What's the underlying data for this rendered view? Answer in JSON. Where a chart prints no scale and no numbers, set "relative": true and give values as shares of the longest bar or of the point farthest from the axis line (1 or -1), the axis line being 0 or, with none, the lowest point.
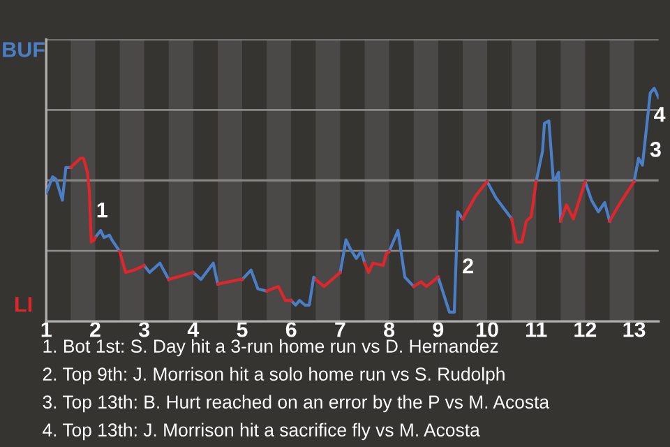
{
  "chart_data": {
    "type": "line",
    "relative": true,
    "grid": "y",
    "legend": false,
    "marker": "none",
    "line_style": "solid",
    "xlim": [
      1,
      13.5
    ],
    "xticks": [
      1,
      2,
      3,
      4,
      5,
      6,
      7,
      8,
      9,
      10,
      11,
      12,
      13
    ],
    "bands": [
      {
        "axis": "x",
        "from": 1.5,
        "to": 2,
        "color": "#4b4947"
      },
      {
        "axis": "x",
        "from": 2.5,
        "to": 3,
        "color": "#4b4947"
      },
      {
        "axis": "x",
        "from": 3.5,
        "to": 4,
        "color": "#4b4947"
      },
      {
        "axis": "x",
        "from": 4.5,
        "to": 5,
        "color": "#4b4947"
      },
      {
        "axis": "x",
        "from": 5.5,
        "to": 6,
        "color": "#4b4947"
      },
      {
        "axis": "x",
        "from": 6.5,
        "to": 7,
        "color": "#4b4947"
      },
      {
        "axis": "x",
        "from": 7.5,
        "to": 8,
        "color": "#4b4947"
      },
      {
        "axis": "x",
        "from": 8.5,
        "to": 9,
        "color": "#4b4947"
      },
      {
        "axis": "x",
        "from": 9.5,
        "to": 10,
        "color": "#4b4947"
      },
      {
        "axis": "x",
        "from": 10.5,
        "to": 11,
        "color": "#4b4947"
      },
      {
        "axis": "x",
        "from": 11.5,
        "to": 12,
        "color": "#4b4947"
      },
      {
        "axis": "x",
        "from": 12.5,
        "to": 13,
        "color": "#4b4947"
      }
    ],
    "series": [
      {
        "name": "BUF",
        "color": "#4a7fc8",
        "x": [
          1,
          1.13,
          1.2,
          1.33,
          1.4,
          1.5,
          null,
          2,
          2.11,
          2.18,
          2.29,
          2.34,
          2.5,
          null,
          3,
          3.11,
          3.32,
          3.5,
          null,
          4,
          4.16,
          4.41,
          4.5,
          null,
          5,
          5.18,
          5.32,
          5.5,
          null,
          6,
          6.09,
          6.17,
          6.28,
          6.37,
          6.46,
          6.5,
          null,
          7,
          7.12,
          7.21,
          7.33,
          7.43,
          7.5,
          null,
          8,
          8.18,
          8.32,
          8.5,
          null,
          9,
          9.23,
          9.33,
          9.4,
          9.5,
          null,
          10,
          10.18,
          10.5,
          null,
          11,
          11.13,
          11.17,
          11.26,
          11.35,
          11.39,
          11.46,
          11.5,
          null,
          12,
          12.13,
          12.27,
          12.4,
          12.5,
          null,
          13,
          13.09,
          13.17,
          13.33,
          13.41,
          13.5
        ],
        "values": [
          0.55,
          0.62,
          0.61,
          0.52,
          0.66,
          0.66,
          null,
          0.36,
          0.39,
          0.36,
          0.37,
          0.35,
          0.3,
          null,
          0.24,
          0.21,
          0.25,
          0.18,
          null,
          0.21,
          0.18,
          0.25,
          0.16,
          null,
          0.18,
          0.22,
          0.14,
          0.13,
          null,
          0.09,
          0.07,
          0.09,
          0.07,
          0.07,
          0.19,
          0.18,
          null,
          0.21,
          0.35,
          0.31,
          0.27,
          0.3,
          0.25,
          null,
          0.3,
          0.39,
          0.19,
          0.15,
          null,
          0.19,
          0.04,
          0.04,
          0.47,
          0.44,
          null,
          0.6,
          0.53,
          0.44,
          null,
          0.6,
          0.73,
          0.85,
          0.86,
          0.61,
          0.61,
          0.64,
          0.43,
          null,
          0.6,
          0.52,
          0.47,
          0.51,
          0.43,
          null,
          0.6,
          0.7,
          0.67,
          0.98,
          1.0,
          0.96
        ]
      },
      {
        "name": "LI",
        "color": "#e0262a",
        "x": [
          1.5,
          1.7,
          1.76,
          1.84,
          1.88,
          1.92,
          1.98,
          2,
          null,
          2.5,
          2.62,
          2.79,
          3,
          null,
          3.5,
          4,
          null,
          4.5,
          4.96,
          5,
          null,
          5.5,
          5.74,
          5.88,
          6,
          null,
          6.5,
          6.67,
          7,
          null,
          7.5,
          7.58,
          7.67,
          7.88,
          7.94,
          8,
          null,
          8.5,
          8.65,
          8.76,
          9,
          null,
          9.5,
          9.77,
          10,
          null,
          10.5,
          10.6,
          10.71,
          10.8,
          10.9,
          11,
          null,
          11.5,
          11.62,
          11.76,
          12,
          null,
          12.5,
          12.69,
          13
        ],
        "values": [
          0.66,
          0.7,
          0.7,
          0.64,
          0.56,
          0.34,
          0.35,
          0.36,
          null,
          0.3,
          0.21,
          0.22,
          0.24,
          null,
          0.18,
          0.21,
          null,
          0.16,
          0.18,
          0.18,
          null,
          0.13,
          0.15,
          0.09,
          0.09,
          null,
          0.18,
          0.15,
          0.21,
          null,
          0.25,
          0.21,
          0.25,
          0.24,
          0.29,
          0.3,
          null,
          0.15,
          0.17,
          0.15,
          0.19,
          null,
          0.44,
          0.54,
          0.6,
          null,
          0.44,
          0.34,
          0.34,
          0.43,
          0.45,
          0.6,
          null,
          0.43,
          0.5,
          0.44,
          0.6,
          null,
          0.43,
          0.5,
          0.6
        ]
      }
    ],
    "annotations": [
      {
        "text": "1",
        "x": 1.9,
        "y": 0.47
      },
      {
        "text": "2",
        "x": 9.37,
        "y": 0.23
      },
      {
        "text": "3",
        "x": 13.2,
        "y": 0.73
      },
      {
        "text": "4",
        "x": 13.28,
        "y": 0.88
      },
      "1. Bot 1st: S. Day hit a 3-run home run vs D. Hernandez",
      "2. Top 9th: J. Morrison hit a solo home run vs S. Rudolph",
      "3. Top 13th: B. Hurt reached on an error by the P vs M. Acosta",
      "4. Top 13th: J. Morrison hit a sacrifice fly vs M. Acosta"
    ]
  }
}
